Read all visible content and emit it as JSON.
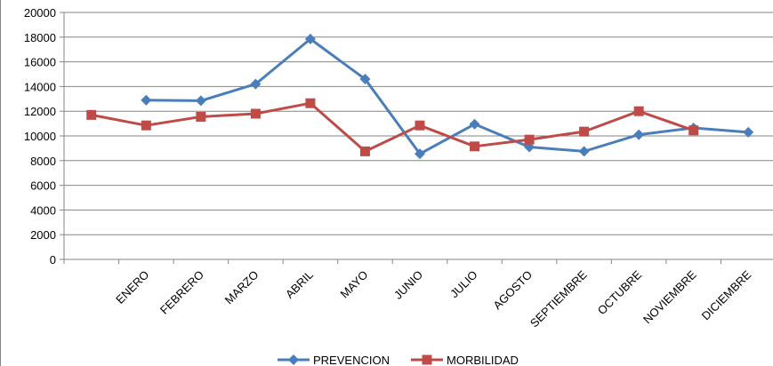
{
  "chart_data": {
    "type": "line",
    "categories": [
      null,
      "ENERO",
      "FEBRERO",
      "MARZO",
      "ABRIL",
      "MAYO",
      "JUNIO",
      "JULIO",
      "AGOSTO",
      "SEPTIEMBRE",
      "OCTUBRE",
      "NOVIEMBRE",
      "DICIEMBRE"
    ],
    "series": [
      {
        "name": "PREVENCION",
        "color": "#4a7ebb",
        "marker": "diamond",
        "values": [
          null,
          12900,
          12850,
          14200,
          17850,
          14600,
          8550,
          10950,
          9100,
          8750,
          10100,
          10650,
          10300
        ]
      },
      {
        "name": "MORBILIDAD",
        "color": "#be4b48",
        "marker": "square",
        "values": [
          11700,
          10850,
          11550,
          11800,
          12650,
          8750,
          10850,
          9150,
          9700,
          10350,
          12000,
          10450,
          null
        ]
      }
    ],
    "ylim": [
      0,
      20000
    ],
    "yticks": [
      0,
      2000,
      4000,
      6000,
      8000,
      10000,
      12000,
      14000,
      16000,
      18000,
      20000
    ],
    "grid": true,
    "legend": "bottom"
  }
}
